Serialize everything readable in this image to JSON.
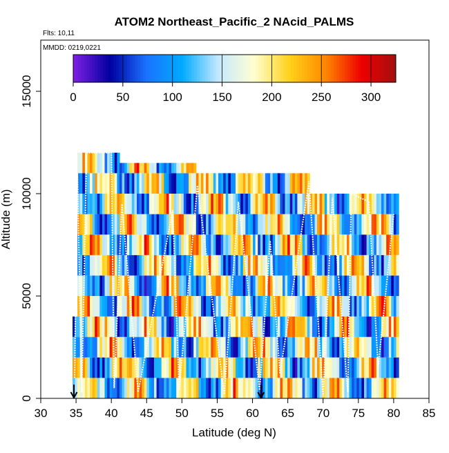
{
  "chart_data": {
    "type": "heatmap",
    "title": "ATOM2 Northeast_Pacific_2 NAcid_PALMS",
    "flights_label": "Flts: 10,11",
    "dates_label": "MMDD: 0219,0221",
    "xlabel": "Latitude (deg N)",
    "ylabel": "Altitude (m)",
    "xlim": [
      30,
      85
    ],
    "ylim": [
      0,
      17500
    ],
    "xticks": [
      "30",
      "35",
      "40",
      "45",
      "50",
      "55",
      "60",
      "65",
      "70",
      "75",
      "80",
      "85"
    ],
    "yticks": [
      "0",
      "5000",
      "10000",
      "15000"
    ],
    "colorbar": {
      "range": [
        0,
        325
      ],
      "ticks": [
        "0",
        "50",
        "100",
        "150",
        "200",
        "250",
        "300"
      ],
      "colors": [
        "#7a1fe0",
        "#0000a0",
        "#1a72ff",
        "#00aaff",
        "#c4e8ff",
        "#ffffd0",
        "#ffd11a",
        "#ff8800",
        "#ee0000",
        "#a01010"
      ]
    },
    "markers": [
      {
        "lat": 34.7
      },
      {
        "lat": 61.2
      }
    ],
    "grid": false,
    "legend": "colorbar-top"
  }
}
